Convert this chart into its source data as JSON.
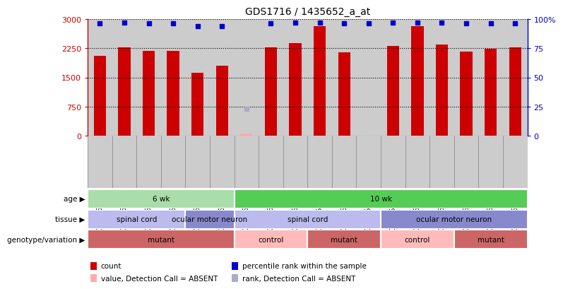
{
  "title": "GDS1716 / 1435652_a_at",
  "samples": [
    "GSM75467",
    "GSM75468",
    "GSM75469",
    "GSM75464",
    "GSM75465",
    "GSM75466",
    "GSM75485",
    "GSM75486",
    "GSM75487",
    "GSM75505",
    "GSM75506",
    "GSM75507",
    "GSM75472",
    "GSM75479",
    "GSM75484",
    "GSM75488",
    "GSM75489",
    "GSM75490"
  ],
  "bar_values": [
    2050,
    2280,
    2175,
    2175,
    1625,
    1800,
    50,
    2270,
    2380,
    2825,
    2150,
    0,
    2300,
    2825,
    2350,
    2170,
    2230,
    2270
  ],
  "bar_absent": [
    false,
    false,
    false,
    false,
    false,
    false,
    true,
    false,
    false,
    false,
    false,
    false,
    false,
    false,
    false,
    false,
    false,
    false
  ],
  "percentile_values": [
    96,
    97,
    96,
    96,
    94,
    94,
    23,
    96,
    97,
    97,
    96,
    96,
    97,
    97,
    97,
    96,
    96,
    96
  ],
  "percentile_absent": [
    false,
    false,
    false,
    false,
    false,
    false,
    true,
    false,
    false,
    false,
    false,
    false,
    false,
    false,
    false,
    false,
    false,
    false
  ],
  "bar_color": "#cc0000",
  "bar_absent_color": "#ffaaaa",
  "dot_color": "#0000cc",
  "dot_absent_color": "#aaaacc",
  "ylim_left": [
    0,
    3000
  ],
  "ylim_right": [
    0,
    100
  ],
  "yticks_left": [
    0,
    750,
    1500,
    2250,
    3000
  ],
  "yticks_right": [
    0,
    25,
    50,
    75,
    100
  ],
  "ytick_right_labels": [
    "0",
    "25",
    "50",
    "75",
    "100%"
  ],
  "age_groups": [
    {
      "label": "6 wk",
      "start": 0,
      "end": 6,
      "color": "#aaddaa"
    },
    {
      "label": "10 wk",
      "start": 6,
      "end": 18,
      "color": "#55cc55"
    }
  ],
  "tissue_groups": [
    {
      "label": "spinal cord",
      "start": 0,
      "end": 4,
      "color": "#bbbbee"
    },
    {
      "label": "ocular motor neuron",
      "start": 4,
      "end": 6,
      "color": "#8888cc"
    },
    {
      "label": "spinal cord",
      "start": 6,
      "end": 12,
      "color": "#bbbbee"
    },
    {
      "label": "ocular motor neuron",
      "start": 12,
      "end": 18,
      "color": "#8888cc"
    }
  ],
  "genotype_groups": [
    {
      "label": "mutant",
      "start": 0,
      "end": 6,
      "color": "#cc6666"
    },
    {
      "label": "control",
      "start": 6,
      "end": 9,
      "color": "#ffbbbb"
    },
    {
      "label": "mutant",
      "start": 9,
      "end": 12,
      "color": "#cc6666"
    },
    {
      "label": "control",
      "start": 12,
      "end": 15,
      "color": "#ffbbbb"
    },
    {
      "label": "mutant",
      "start": 15,
      "end": 18,
      "color": "#cc6666"
    }
  ],
  "row_labels": [
    "age",
    "tissue",
    "genotype/variation"
  ],
  "legend_items": [
    {
      "color": "#cc0000",
      "label": "count",
      "marker": "square"
    },
    {
      "color": "#0000cc",
      "label": "percentile rank within the sample",
      "marker": "square"
    },
    {
      "color": "#ffaaaa",
      "label": "value, Detection Call = ABSENT",
      "marker": "square"
    },
    {
      "color": "#aaaacc",
      "label": "rank, Detection Call = ABSENT",
      "marker": "square"
    }
  ],
  "bar_width": 0.5,
  "background_color": "#ffffff",
  "axes_bg_color": "#cccccc"
}
